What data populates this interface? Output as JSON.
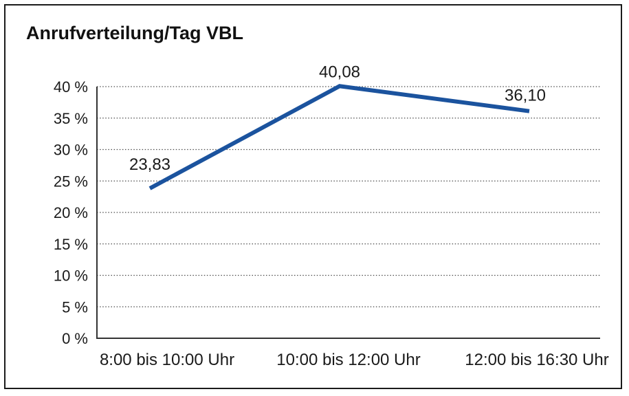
{
  "chart_data": {
    "type": "line",
    "title": "Anrufverteilung/Tag VBL",
    "categories": [
      "8:00 bis 10:00 Uhr",
      "10:00 bis 12:00 Uhr",
      "12:00 bis 16:30 Uhr"
    ],
    "series": [
      {
        "name": "Anrufverteilung/Tag VBL",
        "values": [
          23.83,
          40.08,
          36.1
        ]
      }
    ],
    "data_labels": [
      "23,83",
      "40,08",
      "36,10"
    ],
    "yticks": [
      0,
      5,
      10,
      15,
      20,
      25,
      30,
      35,
      40
    ],
    "ytick_labels": [
      "0 %",
      "5 %",
      "10 %",
      "15 %",
      "20 %",
      "25 %",
      "30 %",
      "35 %",
      "40 %"
    ],
    "ylim": [
      0,
      40
    ],
    "xlabel": "",
    "ylabel": "",
    "grid": "horizontal-dotted",
    "legend": "none",
    "colors": {
      "line": "#1b539e",
      "grid": "#4a4a4a",
      "axis": "#333333",
      "text": "#1a1a1a",
      "border": "#000000",
      "background": "#ffffff"
    }
  }
}
